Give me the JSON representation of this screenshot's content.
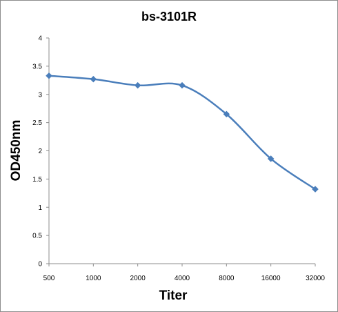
{
  "chart_data": {
    "type": "line",
    "title": "bs-3101R",
    "xlabel": "Titer",
    "ylabel": "OD450nm",
    "categories": [
      "500",
      "1000",
      "2000",
      "4000",
      "8000",
      "16000",
      "32000"
    ],
    "series": [
      {
        "values": [
          3.33,
          3.27,
          3.16,
          3.16,
          2.65,
          1.86,
          1.32
        ],
        "color": "#4a7ebb",
        "marker": "diamond",
        "smooth": true
      }
    ],
    "ylim": [
      0,
      4
    ],
    "yticks": [
      "0",
      "0.5",
      "1",
      "1.5",
      "2",
      "2.5",
      "3",
      "3.5",
      "4"
    ],
    "grid": false,
    "legend": "none"
  }
}
